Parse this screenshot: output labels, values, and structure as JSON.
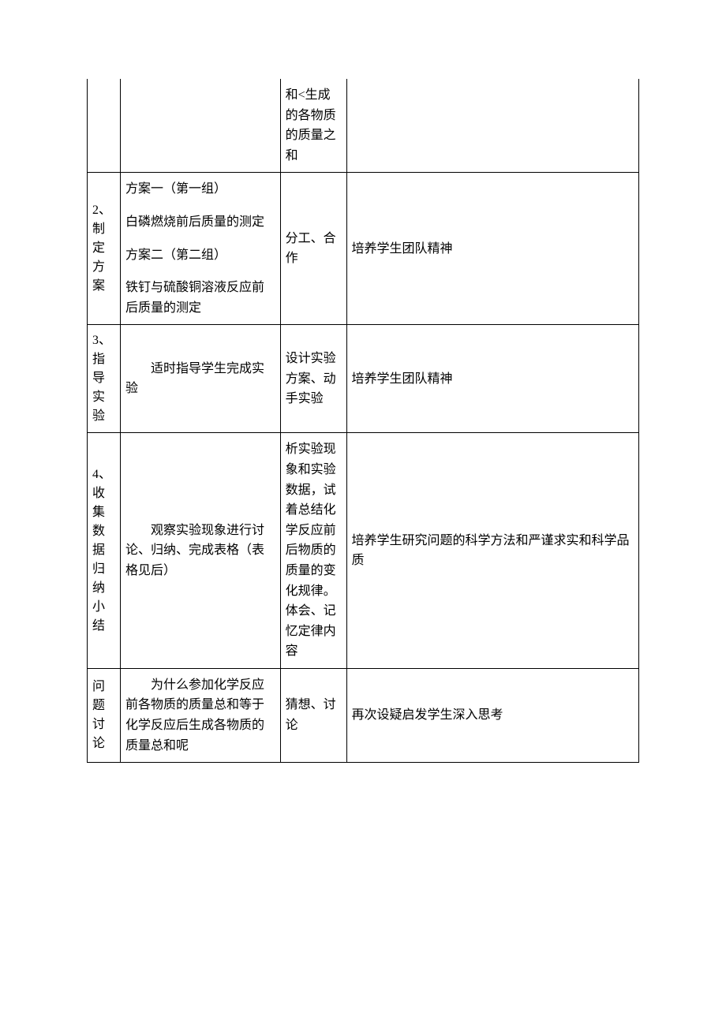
{
  "table": {
    "border_color": "#000000",
    "background_color": "#ffffff",
    "text_color": "#000000",
    "font_family": "SimSun",
    "font_size_pt": 12,
    "column_widths_pct": [
      6,
      29,
      12,
      53
    ],
    "rows": [
      {
        "c1": "",
        "c2": "",
        "c3": "和<生成的各物质的质量之和",
        "c4": "",
        "continuation": true
      },
      {
        "c1": "2、制定方案",
        "c2_lines": [
          "方案一（第一组）",
          "白磷燃烧前后质量的测定",
          "方案二（第二组）",
          "铁钉与硫酸铜溶液反应前后质量的测定"
        ],
        "c3": "分工、合作",
        "c4": "培养学生团队精神"
      },
      {
        "c1": "3、指导实验",
        "c2": "适时指导学生完成实验",
        "c2_indent": true,
        "c3": "设计实验方案、动手实验",
        "c4": "培养学生团队精神"
      },
      {
        "c1": "4、收集数据归纳小结",
        "c2": "观察实验现象进行讨论、归纳、完成表格（表格见后）",
        "c2_indent": true,
        "c3": "析实验现象和实验数据，试着总结化学反应前后物质的质量的变化规律。\n体会、记忆定律内容",
        "c4": "培养学生研究问题的科学方法和严谨求实和科学品质"
      },
      {
        "c1": "问题讨论",
        "c2": "为什么参加化学反应前各物质的质量总和等于化学反应后生成各物质的质量总和呢",
        "c2_indent": true,
        "c3": "猜想、讨论",
        "c4": "再次设疑启发学生深入思考"
      }
    ]
  }
}
